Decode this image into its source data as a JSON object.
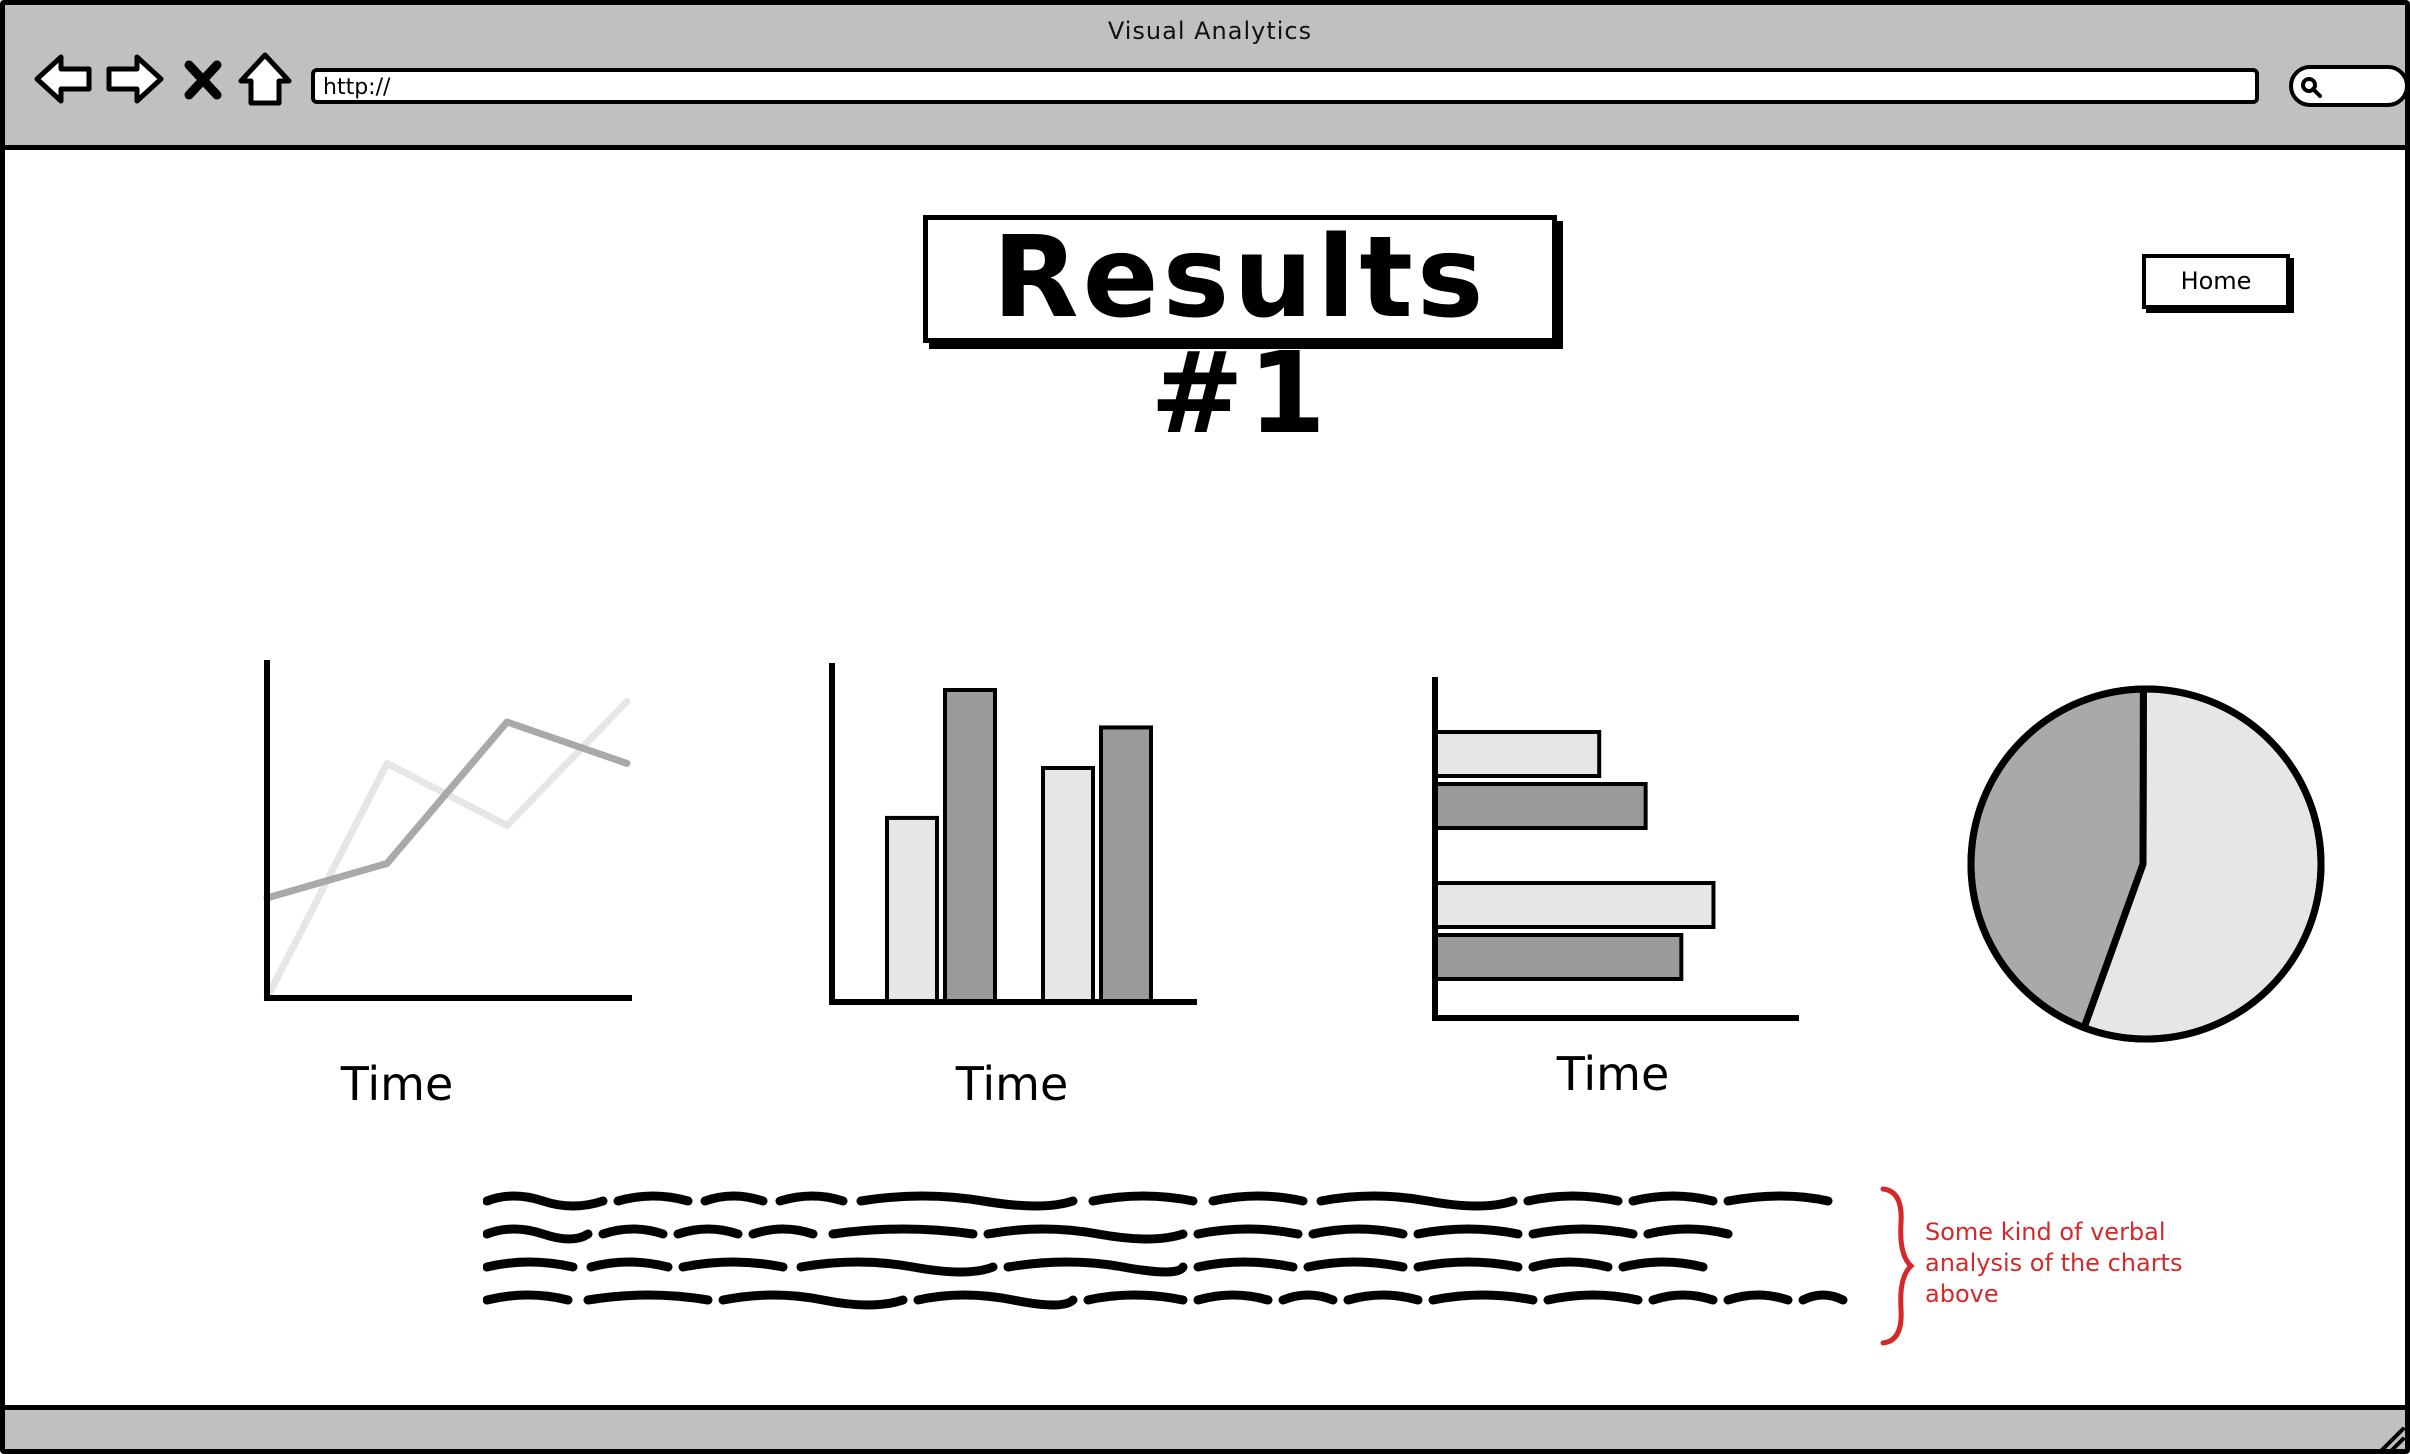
{
  "window": {
    "title": "Visual Analytics"
  },
  "toolbar": {
    "back_icon": "back-arrow-icon",
    "forward_icon": "forward-arrow-icon",
    "stop_icon": "close-x-icon",
    "home_icon": "home-icon",
    "url_value": "http://",
    "search_icon": "search-icon"
  },
  "page": {
    "title": "Results #1",
    "home_button": "Home",
    "annotation": "Some kind of verbal analysis of the charts above"
  },
  "colors": {
    "light_series": "#e6e6e6",
    "dark_series": "#9a9a9a",
    "mid_series": "#a9a9a9",
    "annotation": "#d62828",
    "chrome": "#c0c0c0"
  },
  "chart_data": [
    {
      "type": "line",
      "xlabel": "Time",
      "ylabel": "",
      "x": [
        0,
        1,
        2,
        3
      ],
      "ylim": [
        0,
        10
      ],
      "series": [
        {
          "values": [
            0,
            6.8,
            5.0,
            8.6
          ],
          "color": "#e6e6e6"
        },
        {
          "values": [
            2.9,
            3.9,
            8.0,
            6.8
          ],
          "color": "#a9a9a9"
        }
      ]
    },
    {
      "type": "bar",
      "xlabel": "Time",
      "ylabel": "",
      "categories": [
        "1",
        "2"
      ],
      "ylim": [
        0,
        10
      ],
      "series": [
        {
          "values": [
            5.9,
            7.5
          ],
          "color": "#e6e6e6"
        },
        {
          "values": [
            10.0,
            8.8
          ],
          "color": "#9a9a9a"
        }
      ]
    },
    {
      "type": "bar",
      "orientation": "horizontal",
      "xlabel": "Time",
      "ylabel": "",
      "categories": [
        "1",
        "2"
      ],
      "xlim": [
        0,
        10
      ],
      "series": [
        {
          "values": [
            4.6,
            7.8
          ],
          "color": "#e6e6e6"
        },
        {
          "values": [
            5.9,
            6.9
          ],
          "color": "#9a9a9a"
        }
      ]
    },
    {
      "type": "pie",
      "slices": [
        {
          "value": 56,
          "color": "#e6e6e6"
        },
        {
          "value": 44,
          "color": "#a9a9a9"
        }
      ]
    }
  ]
}
